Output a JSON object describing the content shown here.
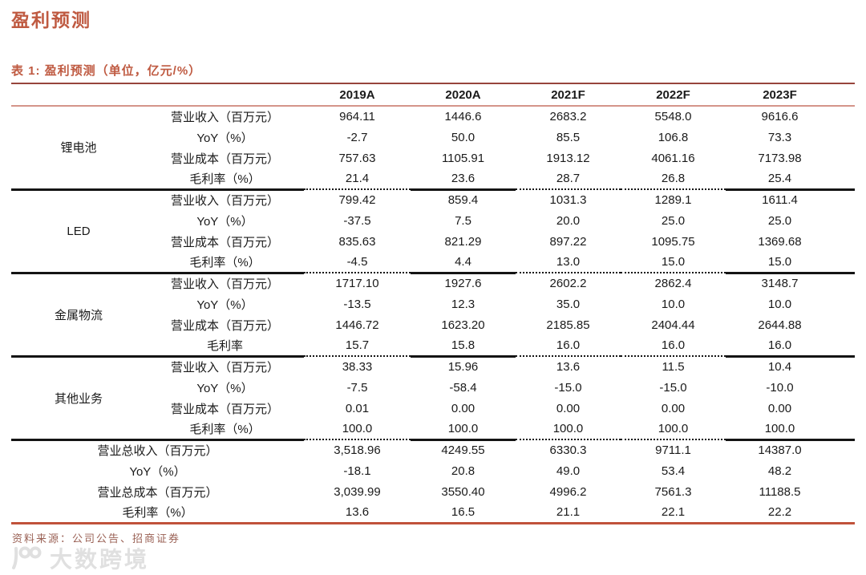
{
  "page": {
    "title": "盈利预测",
    "accent_color": "#bf5a41",
    "source_note": "资料来源：公司公告、招商证券",
    "watermark_text": "大数跨境"
  },
  "table": {
    "caption": "表 1: 盈利预测（单位，亿元/%）",
    "columns": [
      "2019A",
      "2020A",
      "2021F",
      "2022F",
      "2023F"
    ],
    "groups": [
      {
        "name": "锂电池",
        "rows": [
          {
            "label": "营业收入（百万元）",
            "values": [
              "964.11",
              "1446.6",
              "2683.2",
              "5548.0",
              "9616.6"
            ]
          },
          {
            "label": "YoY（%）",
            "values": [
              "-2.7",
              "50.0",
              "85.5",
              "106.8",
              "73.3"
            ]
          },
          {
            "label": "营业成本（百万元）",
            "values": [
              "757.63",
              "1105.91",
              "1913.12",
              "4061.16",
              "7173.98"
            ]
          },
          {
            "label": "毛利率（%）",
            "values": [
              "21.4",
              "23.6",
              "28.7",
              "26.8",
              "25.4"
            ]
          }
        ]
      },
      {
        "name": "LED",
        "rows": [
          {
            "label": "营业收入（百万元）",
            "values": [
              "799.42",
              "859.4",
              "1031.3",
              "1289.1",
              "1611.4"
            ]
          },
          {
            "label": "YoY（%）",
            "values": [
              "-37.5",
              "7.5",
              "20.0",
              "25.0",
              "25.0"
            ]
          },
          {
            "label": "营业成本（百万元）",
            "values": [
              "835.63",
              "821.29",
              "897.22",
              "1095.75",
              "1369.68"
            ]
          },
          {
            "label": "毛利率（%）",
            "values": [
              "-4.5",
              "4.4",
              "13.0",
              "15.0",
              "15.0"
            ]
          }
        ]
      },
      {
        "name": "金属物流",
        "rows": [
          {
            "label": "营业收入（百万元）",
            "values": [
              "1717.10",
              "1927.6",
              "2602.2",
              "2862.4",
              "3148.7"
            ]
          },
          {
            "label": "YoY（%）",
            "values": [
              "-13.5",
              "12.3",
              "35.0",
              "10.0",
              "10.0"
            ]
          },
          {
            "label": "营业成本（百万元）",
            "values": [
              "1446.72",
              "1623.20",
              "2185.85",
              "2404.44",
              "2644.88"
            ]
          },
          {
            "label": "毛利率",
            "values": [
              "15.7",
              "15.8",
              "16.0",
              "16.0",
              "16.0"
            ]
          }
        ]
      },
      {
        "name": "其他业务",
        "rows": [
          {
            "label": "营业收入（百万元）",
            "values": [
              "38.33",
              "15.96",
              "13.6",
              "11.5",
              "10.4"
            ]
          },
          {
            "label": "YoY（%）",
            "values": [
              "-7.5",
              "-58.4",
              "-15.0",
              "-15.0",
              "-10.0"
            ]
          },
          {
            "label": "营业成本（百万元）",
            "values": [
              "0.01",
              "0.00",
              "0.00",
              "0.00",
              "0.00"
            ]
          },
          {
            "label": "毛利率（%）",
            "values": [
              "100.0",
              "100.0",
              "100.0",
              "100.0",
              "100.0"
            ]
          }
        ]
      }
    ],
    "totals": [
      {
        "label": "营业总收入（百万元）",
        "values": [
          "3,518.96",
          "4249.55",
          "6330.3",
          "9711.1",
          "14387.0"
        ]
      },
      {
        "label": "YoY（%）",
        "values": [
          "-18.1",
          "20.8",
          "49.0",
          "53.4",
          "48.2"
        ]
      },
      {
        "label": "营业总成本（百万元）",
        "values": [
          "3,039.99",
          "3550.40",
          "4996.2",
          "7561.3",
          "11188.5"
        ]
      },
      {
        "label": "毛利率（%）",
        "values": [
          "13.6",
          "16.5",
          "21.1",
          "22.1",
          "22.2"
        ]
      }
    ]
  }
}
